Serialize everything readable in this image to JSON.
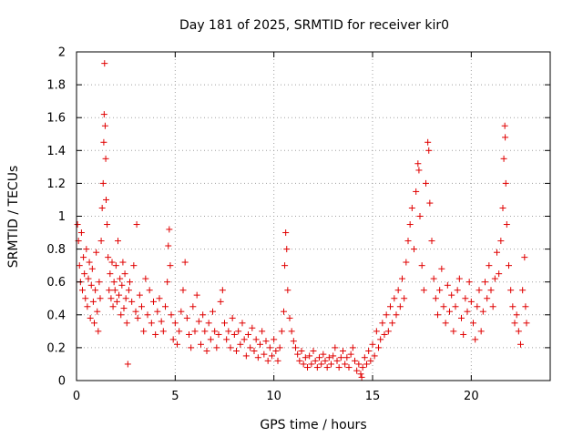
{
  "chart_data": {
    "type": "scatter",
    "title": "Day 181 of 2025, SRMTID for receiver kir0",
    "xlabel": "GPS time / hours",
    "ylabel": "SRMTID / TECUs",
    "xlim": [
      0,
      24
    ],
    "ylim": [
      0,
      2
    ],
    "xticks": [
      0,
      5,
      10,
      15,
      20
    ],
    "yticks": [
      0,
      0.2,
      0.4,
      0.6,
      0.8,
      1,
      1.2,
      1.4,
      1.6,
      1.8,
      2
    ],
    "xtick_labels": [
      "0",
      "5",
      "10",
      "15",
      "20"
    ],
    "ytick_labels": [
      "0",
      "0.2",
      "0.4",
      "0.6",
      "0.8",
      "1",
      "1.2",
      "1.4",
      "1.6",
      "1.8",
      "2"
    ],
    "grid": true,
    "marker": "+",
    "color": "#e00000",
    "series": [
      {
        "name": "SRMTID",
        "points": [
          [
            0.05,
            0.95
          ],
          [
            0.1,
            0.85
          ],
          [
            0.15,
            0.7
          ],
          [
            0.2,
            0.6
          ],
          [
            0.25,
            0.9
          ],
          [
            0.3,
            0.55
          ],
          [
            0.35,
            0.75
          ],
          [
            0.4,
            0.65
          ],
          [
            0.45,
            0.5
          ],
          [
            0.5,
            0.8
          ],
          [
            0.55,
            0.45
          ],
          [
            0.6,
            0.62
          ],
          [
            0.65,
            0.72
          ],
          [
            0.7,
            0.38
          ],
          [
            0.75,
            0.58
          ],
          [
            0.8,
            0.68
          ],
          [
            0.85,
            0.48
          ],
          [
            0.9,
            0.35
          ],
          [
            0.95,
            0.55
          ],
          [
            1.0,
            0.78
          ],
          [
            1.05,
            0.42
          ],
          [
            1.1,
            0.3
          ],
          [
            1.15,
            0.6
          ],
          [
            1.2,
            0.5
          ],
          [
            1.25,
            0.85
          ],
          [
            1.3,
            1.05
          ],
          [
            1.35,
            1.2
          ],
          [
            1.38,
            1.45
          ],
          [
            1.4,
            1.62
          ],
          [
            1.42,
            1.93
          ],
          [
            1.45,
            1.55
          ],
          [
            1.48,
            1.35
          ],
          [
            1.5,
            1.1
          ],
          [
            1.55,
            0.95
          ],
          [
            1.6,
            0.75
          ],
          [
            1.65,
            0.55
          ],
          [
            1.7,
            0.65
          ],
          [
            1.75,
            0.5
          ],
          [
            1.8,
            0.72
          ],
          [
            1.85,
            0.45
          ],
          [
            1.9,
            0.6
          ],
          [
            1.95,
            0.55
          ],
          [
            2.0,
            0.7
          ],
          [
            2.05,
            0.48
          ],
          [
            2.1,
            0.85
          ],
          [
            2.15,
            0.52
          ],
          [
            2.2,
            0.62
          ],
          [
            2.25,
            0.4
          ],
          [
            2.3,
            0.58
          ],
          [
            2.35,
            0.72
          ],
          [
            2.4,
            0.44
          ],
          [
            2.45,
            0.65
          ],
          [
            2.5,
            0.5
          ],
          [
            2.55,
            0.35
          ],
          [
            2.6,
            0.1
          ],
          [
            2.65,
            0.55
          ],
          [
            2.7,
            0.6
          ],
          [
            2.8,
            0.48
          ],
          [
            2.9,
            0.7
          ],
          [
            3.0,
            0.42
          ],
          [
            3.05,
            0.95
          ],
          [
            3.1,
            0.38
          ],
          [
            3.2,
            0.52
          ],
          [
            3.3,
            0.45
          ],
          [
            3.4,
            0.3
          ],
          [
            3.5,
            0.62
          ],
          [
            3.6,
            0.4
          ],
          [
            3.7,
            0.55
          ],
          [
            3.8,
            0.35
          ],
          [
            3.9,
            0.48
          ],
          [
            4.0,
            0.28
          ],
          [
            4.1,
            0.42
          ],
          [
            4.2,
            0.5
          ],
          [
            4.3,
            0.36
          ],
          [
            4.4,
            0.3
          ],
          [
            4.5,
            0.45
          ],
          [
            4.6,
            0.6
          ],
          [
            4.65,
            0.82
          ],
          [
            4.7,
            0.92
          ],
          [
            4.75,
            0.7
          ],
          [
            4.8,
            0.4
          ],
          [
            4.9,
            0.25
          ],
          [
            5.0,
            0.35
          ],
          [
            5.1,
            0.22
          ],
          [
            5.2,
            0.3
          ],
          [
            5.3,
            0.42
          ],
          [
            5.4,
            0.55
          ],
          [
            5.5,
            0.72
          ],
          [
            5.6,
            0.38
          ],
          [
            5.7,
            0.28
          ],
          [
            5.8,
            0.2
          ],
          [
            5.9,
            0.45
          ],
          [
            6.0,
            0.3
          ],
          [
            6.1,
            0.52
          ],
          [
            6.2,
            0.36
          ],
          [
            6.3,
            0.22
          ],
          [
            6.4,
            0.4
          ],
          [
            6.5,
            0.3
          ],
          [
            6.6,
            0.18
          ],
          [
            6.7,
            0.35
          ],
          [
            6.8,
            0.25
          ],
          [
            6.9,
            0.42
          ],
          [
            7.0,
            0.3
          ],
          [
            7.1,
            0.2
          ],
          [
            7.2,
            0.28
          ],
          [
            7.3,
            0.48
          ],
          [
            7.4,
            0.55
          ],
          [
            7.5,
            0.35
          ],
          [
            7.6,
            0.25
          ],
          [
            7.7,
            0.3
          ],
          [
            7.8,
            0.2
          ],
          [
            7.9,
            0.38
          ],
          [
            8.0,
            0.28
          ],
          [
            8.1,
            0.18
          ],
          [
            8.2,
            0.3
          ],
          [
            8.3,
            0.22
          ],
          [
            8.4,
            0.35
          ],
          [
            8.5,
            0.25
          ],
          [
            8.6,
            0.15
          ],
          [
            8.7,
            0.28
          ],
          [
            8.8,
            0.2
          ],
          [
            8.9,
            0.32
          ],
          [
            9.0,
            0.18
          ],
          [
            9.1,
            0.25
          ],
          [
            9.2,
            0.14
          ],
          [
            9.3,
            0.22
          ],
          [
            9.4,
            0.3
          ],
          [
            9.5,
            0.16
          ],
          [
            9.6,
            0.24
          ],
          [
            9.7,
            0.12
          ],
          [
            9.8,
            0.2
          ],
          [
            9.9,
            0.15
          ],
          [
            10.0,
            0.25
          ],
          [
            10.1,
            0.18
          ],
          [
            10.2,
            0.12
          ],
          [
            10.3,
            0.2
          ],
          [
            10.4,
            0.3
          ],
          [
            10.5,
            0.42
          ],
          [
            10.55,
            0.7
          ],
          [
            10.6,
            0.9
          ],
          [
            10.65,
            0.8
          ],
          [
            10.7,
            0.55
          ],
          [
            10.8,
            0.38
          ],
          [
            10.9,
            0.3
          ],
          [
            11.0,
            0.24
          ],
          [
            11.1,
            0.2
          ],
          [
            11.2,
            0.16
          ],
          [
            11.3,
            0.12
          ],
          [
            11.4,
            0.18
          ],
          [
            11.5,
            0.1
          ],
          [
            11.6,
            0.14
          ],
          [
            11.7,
            0.08
          ],
          [
            11.8,
            0.15
          ],
          [
            11.9,
            0.1
          ],
          [
            12.0,
            0.18
          ],
          [
            12.1,
            0.12
          ],
          [
            12.2,
            0.08
          ],
          [
            12.3,
            0.14
          ],
          [
            12.4,
            0.1
          ],
          [
            12.5,
            0.16
          ],
          [
            12.6,
            0.12
          ],
          [
            12.7,
            0.08
          ],
          [
            12.8,
            0.14
          ],
          [
            12.9,
            0.1
          ],
          [
            13.0,
            0.15
          ],
          [
            13.1,
            0.2
          ],
          [
            13.2,
            0.12
          ],
          [
            13.3,
            0.08
          ],
          [
            13.4,
            0.14
          ],
          [
            13.5,
            0.18
          ],
          [
            13.6,
            0.1
          ],
          [
            13.7,
            0.14
          ],
          [
            13.8,
            0.08
          ],
          [
            13.9,
            0.16
          ],
          [
            14.0,
            0.2
          ],
          [
            14.1,
            0.12
          ],
          [
            14.2,
            0.06
          ],
          [
            14.3,
            0.1
          ],
          [
            14.4,
            0.04
          ],
          [
            14.45,
            0.02
          ],
          [
            14.5,
            0.08
          ],
          [
            14.6,
            0.14
          ],
          [
            14.7,
            0.1
          ],
          [
            14.8,
            0.18
          ],
          [
            14.9,
            0.12
          ],
          [
            15.0,
            0.22
          ],
          [
            15.1,
            0.15
          ],
          [
            15.2,
            0.3
          ],
          [
            15.3,
            0.2
          ],
          [
            15.4,
            0.25
          ],
          [
            15.5,
            0.35
          ],
          [
            15.6,
            0.28
          ],
          [
            15.7,
            0.4
          ],
          [
            15.8,
            0.3
          ],
          [
            15.9,
            0.45
          ],
          [
            16.0,
            0.35
          ],
          [
            16.1,
            0.5
          ],
          [
            16.2,
            0.4
          ],
          [
            16.3,
            0.55
          ],
          [
            16.4,
            0.45
          ],
          [
            16.5,
            0.62
          ],
          [
            16.6,
            0.5
          ],
          [
            16.7,
            0.72
          ],
          [
            16.8,
            0.85
          ],
          [
            16.9,
            0.95
          ],
          [
            17.0,
            1.05
          ],
          [
            17.1,
            0.8
          ],
          [
            17.2,
            1.15
          ],
          [
            17.3,
            1.32
          ],
          [
            17.35,
            1.28
          ],
          [
            17.4,
            1.0
          ],
          [
            17.5,
            0.7
          ],
          [
            17.6,
            0.55
          ],
          [
            17.7,
            1.2
          ],
          [
            17.8,
            1.45
          ],
          [
            17.85,
            1.4
          ],
          [
            17.9,
            1.08
          ],
          [
            18.0,
            0.85
          ],
          [
            18.1,
            0.62
          ],
          [
            18.2,
            0.5
          ],
          [
            18.3,
            0.4
          ],
          [
            18.4,
            0.55
          ],
          [
            18.5,
            0.68
          ],
          [
            18.6,
            0.45
          ],
          [
            18.7,
            0.35
          ],
          [
            18.8,
            0.58
          ],
          [
            18.9,
            0.42
          ],
          [
            19.0,
            0.52
          ],
          [
            19.1,
            0.3
          ],
          [
            19.2,
            0.45
          ],
          [
            19.3,
            0.55
          ],
          [
            19.4,
            0.62
          ],
          [
            19.5,
            0.38
          ],
          [
            19.6,
            0.28
          ],
          [
            19.7,
            0.5
          ],
          [
            19.8,
            0.42
          ],
          [
            19.9,
            0.6
          ],
          [
            20.0,
            0.48
          ],
          [
            20.1,
            0.35
          ],
          [
            20.2,
            0.25
          ],
          [
            20.3,
            0.45
          ],
          [
            20.4,
            0.55
          ],
          [
            20.5,
            0.3
          ],
          [
            20.6,
            0.42
          ],
          [
            20.7,
            0.6
          ],
          [
            20.8,
            0.5
          ],
          [
            20.9,
            0.7
          ],
          [
            21.0,
            0.55
          ],
          [
            21.1,
            0.45
          ],
          [
            21.2,
            0.62
          ],
          [
            21.3,
            0.78
          ],
          [
            21.4,
            0.65
          ],
          [
            21.5,
            0.85
          ],
          [
            21.6,
            1.05
          ],
          [
            21.65,
            1.35
          ],
          [
            21.7,
            1.55
          ],
          [
            21.72,
            1.48
          ],
          [
            21.75,
            1.2
          ],
          [
            21.8,
            0.95
          ],
          [
            21.9,
            0.7
          ],
          [
            22.0,
            0.55
          ],
          [
            22.1,
            0.45
          ],
          [
            22.2,
            0.35
          ],
          [
            22.3,
            0.4
          ],
          [
            22.4,
            0.3
          ],
          [
            22.5,
            0.22
          ],
          [
            22.6,
            0.55
          ],
          [
            22.7,
            0.75
          ],
          [
            22.75,
            0.45
          ],
          [
            22.8,
            0.35
          ]
        ]
      }
    ]
  }
}
